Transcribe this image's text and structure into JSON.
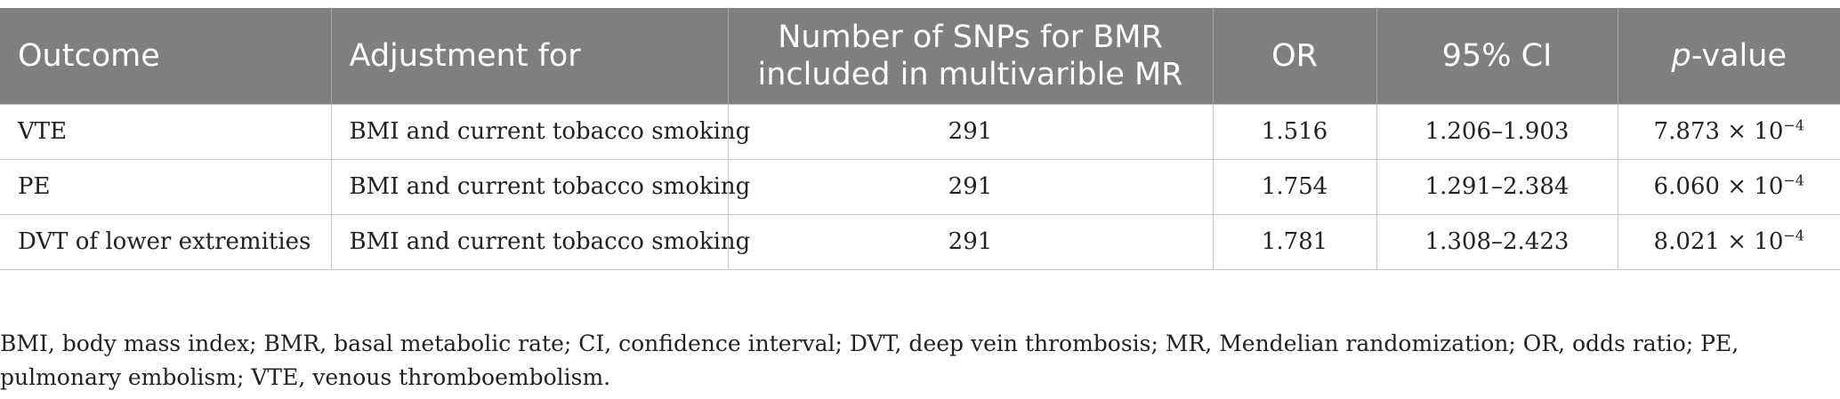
{
  "table": {
    "headers": [
      {
        "text": "Outcome",
        "align": "left"
      },
      {
        "text": "Adjustment for",
        "align": "left"
      },
      {
        "line1": "Number of SNPs for BMR",
        "line2": "included in multivarible MR",
        "align": "center"
      },
      {
        "text": "OR",
        "align": "center"
      },
      {
        "text": "95% CI",
        "align": "center"
      },
      {
        "italic_part": "p",
        "rest": "-value",
        "align": "center"
      }
    ],
    "rows": [
      {
        "outcome": "VTE",
        "adjustment": "BMI and current tobacco smoking",
        "snps": "291",
        "or": "1.516",
        "ci": "1.206–1.903",
        "p_mantissa": "7.873 × 10",
        "p_exponent": "−4"
      },
      {
        "outcome": "PE",
        "adjustment": "BMI and current tobacco smoking",
        "snps": "291",
        "or": "1.754",
        "ci": "1.291–2.384",
        "p_mantissa": "6.060 × 10",
        "p_exponent": "−4"
      },
      {
        "outcome": "DVT of lower extremities",
        "adjustment": "BMI and current tobacco smoking",
        "snps": "291",
        "or": "1.781",
        "ci": "1.308–2.423",
        "p_mantissa": "8.021 × 10",
        "p_exponent": "−4"
      }
    ]
  },
  "footnote": "BMI, body mass index; BMR, basal metabolic rate; CI, confidence interval; DVT, deep vein thrombosis; MR, Mendelian randomization; OR, odds ratio; PE, pulmonary embolism; VTE, venous thromboembolism.",
  "colors": {
    "header_bg": "#7f7f7d",
    "header_text": "#ffffff",
    "grid": "#c8c8c8",
    "body_text": "#222222"
  }
}
